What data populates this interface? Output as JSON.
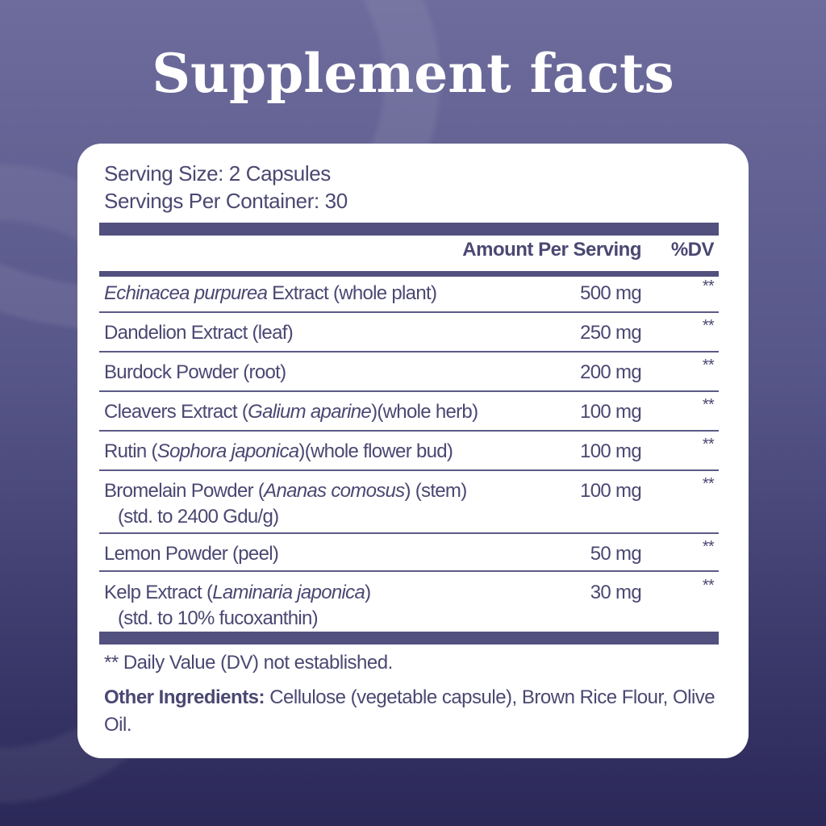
{
  "title": "Supplement facts",
  "serving_size": "Serving Size: 2 Capsules",
  "servings_per_container": "Servings Per Container: 30",
  "headers": {
    "amount": "Amount Per Serving",
    "dv": "%DV"
  },
  "ingredients": [
    {
      "pre": "",
      "italic": "Echinacea purpurea",
      "post": " Extract (whole plant)",
      "sub": "",
      "amount": "500 mg",
      "dv": "**"
    },
    {
      "pre": "Dandelion Extract (leaf)",
      "italic": "",
      "post": "",
      "sub": "",
      "amount": "250 mg",
      "dv": "**"
    },
    {
      "pre": "Burdock Powder (root)",
      "italic": "",
      "post": "",
      "sub": "",
      "amount": "200 mg",
      "dv": "**"
    },
    {
      "pre": "Cleavers Extract (",
      "italic": "Galium aparine",
      "post": ")(whole herb)",
      "sub": "",
      "amount": "100 mg",
      "dv": "**"
    },
    {
      "pre": "Rutin (",
      "italic": "Sophora japonica",
      "post": ")(whole flower bud)",
      "sub": "",
      "amount": "100 mg",
      "dv": "**"
    },
    {
      "pre": "Bromelain Powder (",
      "italic": "Ananas comosus",
      "post": ") (stem)",
      "sub": "(std. to 2400 Gdu/g)",
      "amount": "100 mg",
      "dv": "**"
    },
    {
      "pre": "Lemon Powder (peel)",
      "italic": "",
      "post": "",
      "sub": "",
      "amount": "50 mg",
      "dv": "**"
    },
    {
      "pre": "Kelp Extract (",
      "italic": "Laminaria japonica",
      "post": ")",
      "sub": "(std. to 10% fucoxanthin)",
      "amount": "30 mg",
      "dv": "**"
    }
  ],
  "footnote": "** Daily Value (DV) not established.",
  "other_ingredients": {
    "label": "Other Ingredients:",
    "text": " Cellulose (vegetable capsule), Brown Rice Flour, Olive Oil."
  },
  "colors": {
    "text": "#4a4872",
    "bar": "#52507e",
    "background_top": "#6d6c9c",
    "background_bottom": "#2b2858"
  }
}
